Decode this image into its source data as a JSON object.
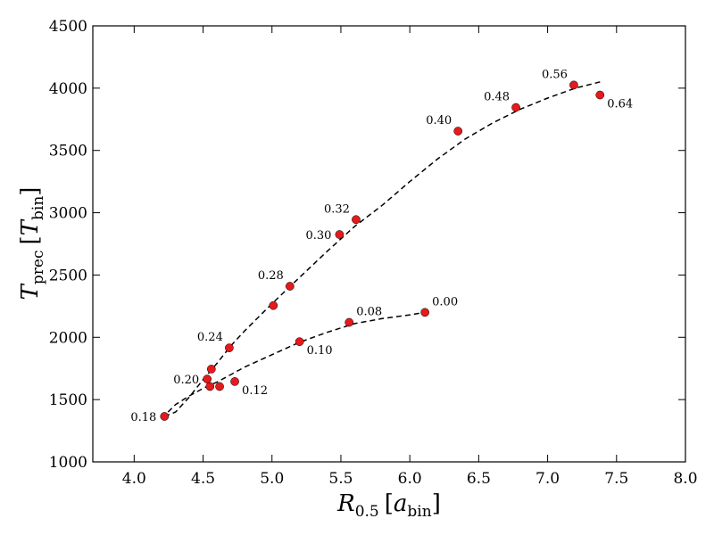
{
  "chart_data": {
    "type": "scatter",
    "title": "",
    "xlabel": {
      "main": "R",
      "sub": "0.5",
      "bracket_main": "a",
      "bracket_sub": "bin"
    },
    "ylabel": {
      "main": "T",
      "sub": "prec",
      "bracket_main": "T",
      "bracket_sub": "bin"
    },
    "xlim": [
      3.7,
      8.0
    ],
    "ylim": [
      1000,
      4500
    ],
    "xticks": [
      "4.0",
      "4.5",
      "5.0",
      "5.5",
      "6.0",
      "6.5",
      "7.0",
      "7.5",
      "8.0"
    ],
    "yticks": [
      "1000",
      "1500",
      "2000",
      "2500",
      "3000",
      "3500",
      "4000",
      "4500"
    ],
    "grid": false,
    "marker_color": "#e41a1c",
    "line_color": "#000000",
    "points": [
      {
        "x": 4.22,
        "y": 1365,
        "label": "0.18",
        "anchor": "left"
      },
      {
        "x": 4.53,
        "y": 1665,
        "label": "0.20",
        "anchor": "left"
      },
      {
        "x": 4.55,
        "y": 1605,
        "label": "",
        "anchor": "none"
      },
      {
        "x": 4.56,
        "y": 1745,
        "label": "",
        "anchor": "none"
      },
      {
        "x": 4.62,
        "y": 1605,
        "label": "",
        "anchor": "none"
      },
      {
        "x": 4.69,
        "y": 1915,
        "label": "0.24",
        "anchor": "above-left"
      },
      {
        "x": 4.73,
        "y": 1645,
        "label": "0.12",
        "anchor": "below-right"
      },
      {
        "x": 5.01,
        "y": 2255,
        "label": "",
        "anchor": "none"
      },
      {
        "x": 5.13,
        "y": 2410,
        "label": "0.28",
        "anchor": "above-left"
      },
      {
        "x": 5.2,
        "y": 1965,
        "label": "0.10",
        "anchor": "below-right"
      },
      {
        "x": 5.49,
        "y": 2825,
        "label": "0.30",
        "anchor": "left"
      },
      {
        "x": 5.56,
        "y": 2120,
        "label": "0.08",
        "anchor": "above-right"
      },
      {
        "x": 5.61,
        "y": 2945,
        "label": "0.32",
        "anchor": "above-left"
      },
      {
        "x": 6.11,
        "y": 2200,
        "label": "0.00",
        "anchor": "above-right"
      },
      {
        "x": 6.35,
        "y": 3655,
        "label": "0.40",
        "anchor": "above-left"
      },
      {
        "x": 6.77,
        "y": 3845,
        "label": "0.48",
        "anchor": "above-left"
      },
      {
        "x": 7.19,
        "y": 4025,
        "label": "0.56",
        "anchor": "above-left"
      },
      {
        "x": 7.38,
        "y": 3945,
        "label": "0.64",
        "anchor": "below-right"
      }
    ],
    "curves": [
      {
        "name": "upper-branch",
        "points": [
          [
            4.22,
            1365
          ],
          [
            4.3,
            1400
          ],
          [
            4.4,
            1520
          ],
          [
            4.5,
            1660
          ],
          [
            4.6,
            1790
          ],
          [
            4.7,
            1930
          ],
          [
            4.8,
            2050
          ],
          [
            5.0,
            2270
          ],
          [
            5.2,
            2480
          ],
          [
            5.4,
            2690
          ],
          [
            5.6,
            2890
          ],
          [
            5.8,
            3060
          ],
          [
            6.0,
            3250
          ],
          [
            6.2,
            3430
          ],
          [
            6.4,
            3590
          ],
          [
            6.6,
            3720
          ],
          [
            6.8,
            3830
          ],
          [
            7.0,
            3920
          ],
          [
            7.2,
            4000
          ],
          [
            7.38,
            4050
          ]
        ]
      },
      {
        "name": "lower-branch",
        "points": [
          [
            4.2,
            1350
          ],
          [
            4.3,
            1460
          ],
          [
            4.4,
            1530
          ],
          [
            4.5,
            1590
          ],
          [
            4.6,
            1640
          ],
          [
            4.8,
            1760
          ],
          [
            5.0,
            1860
          ],
          [
            5.2,
            1960
          ],
          [
            5.4,
            2040
          ],
          [
            5.6,
            2110
          ],
          [
            5.8,
            2150
          ],
          [
            6.0,
            2180
          ],
          [
            6.11,
            2200
          ]
        ]
      }
    ]
  }
}
